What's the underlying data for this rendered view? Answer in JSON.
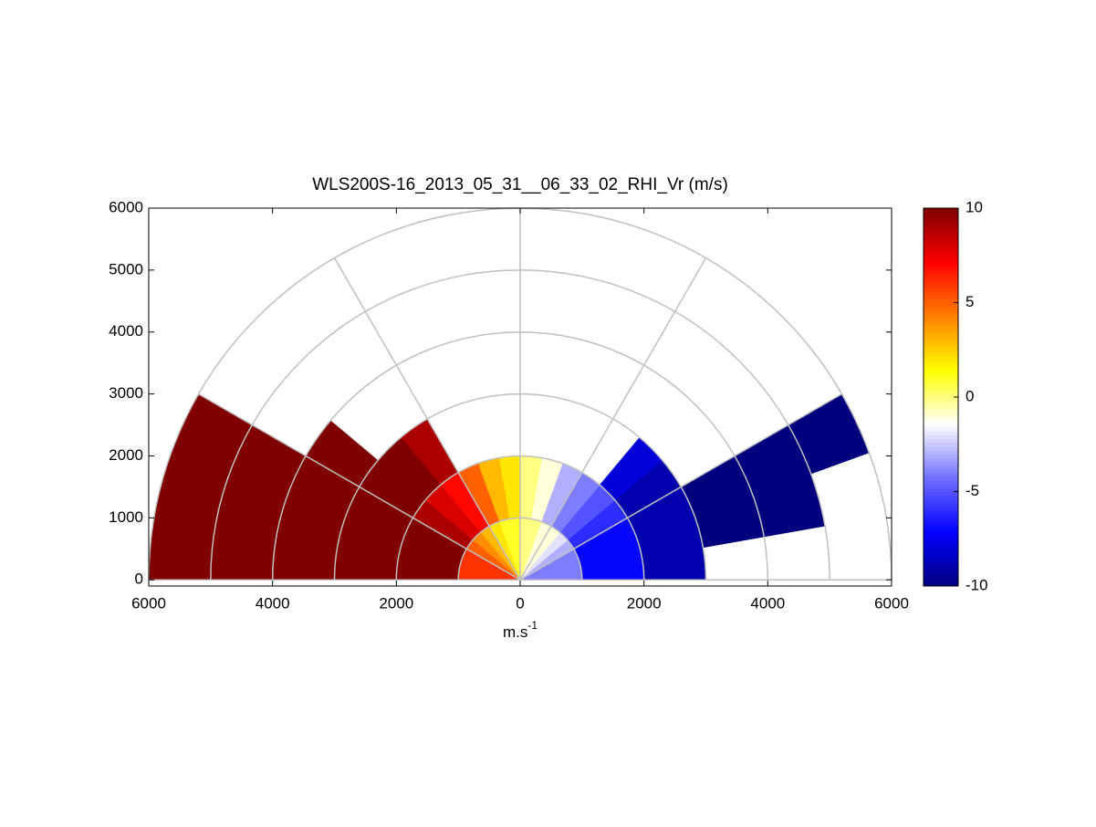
{
  "chart_data": {
    "type": "rhi",
    "title": "WLS200S-16_2013_05_31__06_33_02_RHI_Vr (m/s)",
    "xlabel": {
      "base": "m.s",
      "sup": "-1"
    },
    "xlim": [
      -6000,
      6000
    ],
    "ylim": [
      -100,
      6000
    ],
    "xticks": [
      {
        "value": -6000,
        "label": "6000"
      },
      {
        "value": -4000,
        "label": "4000"
      },
      {
        "value": -2000,
        "label": "2000"
      },
      0,
      2000,
      4000,
      6000
    ],
    "yticks": [
      0,
      1000,
      2000,
      3000,
      4000,
      5000,
      6000
    ],
    "rgrid": [
      1000,
      2000,
      3000,
      4000,
      5000,
      6000
    ],
    "thetagrid": [
      0,
      30,
      60,
      90,
      120,
      150,
      180
    ],
    "clim": [
      -10,
      10
    ],
    "cticks": [
      -10,
      -5,
      0,
      5,
      10
    ],
    "colormap": [
      "#00007f",
      "#0000ff",
      "#6f6fff",
      "#ffffff",
      "#ffff00",
      "#ff8000",
      "#ff0000",
      "#800000"
    ],
    "angle_bins": [
      0,
      10,
      20,
      30,
      40,
      50,
      60,
      70,
      80,
      90,
      100,
      110,
      120,
      130,
      140,
      150,
      160,
      170,
      180
    ],
    "range_bins": [
      0,
      1000,
      2000,
      3000,
      4000,
      5000,
      6000
    ],
    "values": [
      [
        -4,
        -7,
        -9,
        null,
        null,
        null
      ],
      [
        -4,
        -7,
        -9,
        -10,
        -10,
        null
      ],
      [
        -4,
        -7,
        -9,
        -10,
        -10,
        -10
      ],
      [
        -3,
        -6,
        -9,
        null,
        null,
        null
      ],
      [
        -2,
        -5,
        -8,
        null,
        null,
        null
      ],
      [
        -1,
        -4,
        null,
        null,
        null,
        null
      ],
      [
        -1,
        -3,
        null,
        null,
        null,
        null
      ],
      [
        0,
        -1,
        null,
        null,
        null,
        null
      ],
      [
        0,
        0,
        null,
        null,
        null,
        null
      ],
      [
        1,
        2,
        null,
        null,
        null,
        null
      ],
      [
        1,
        3,
        null,
        null,
        null,
        null
      ],
      [
        2,
        5,
        null,
        null,
        null,
        null
      ],
      [
        3,
        7,
        9,
        null,
        null,
        null
      ],
      [
        4,
        8,
        10,
        null,
        null,
        null
      ],
      [
        5,
        9,
        10,
        10,
        null,
        null
      ],
      [
        6,
        10,
        10,
        10,
        10,
        10
      ],
      [
        6,
        10,
        10,
        10,
        10,
        10
      ],
      [
        6,
        10,
        10,
        10,
        10,
        10
      ]
    ]
  }
}
